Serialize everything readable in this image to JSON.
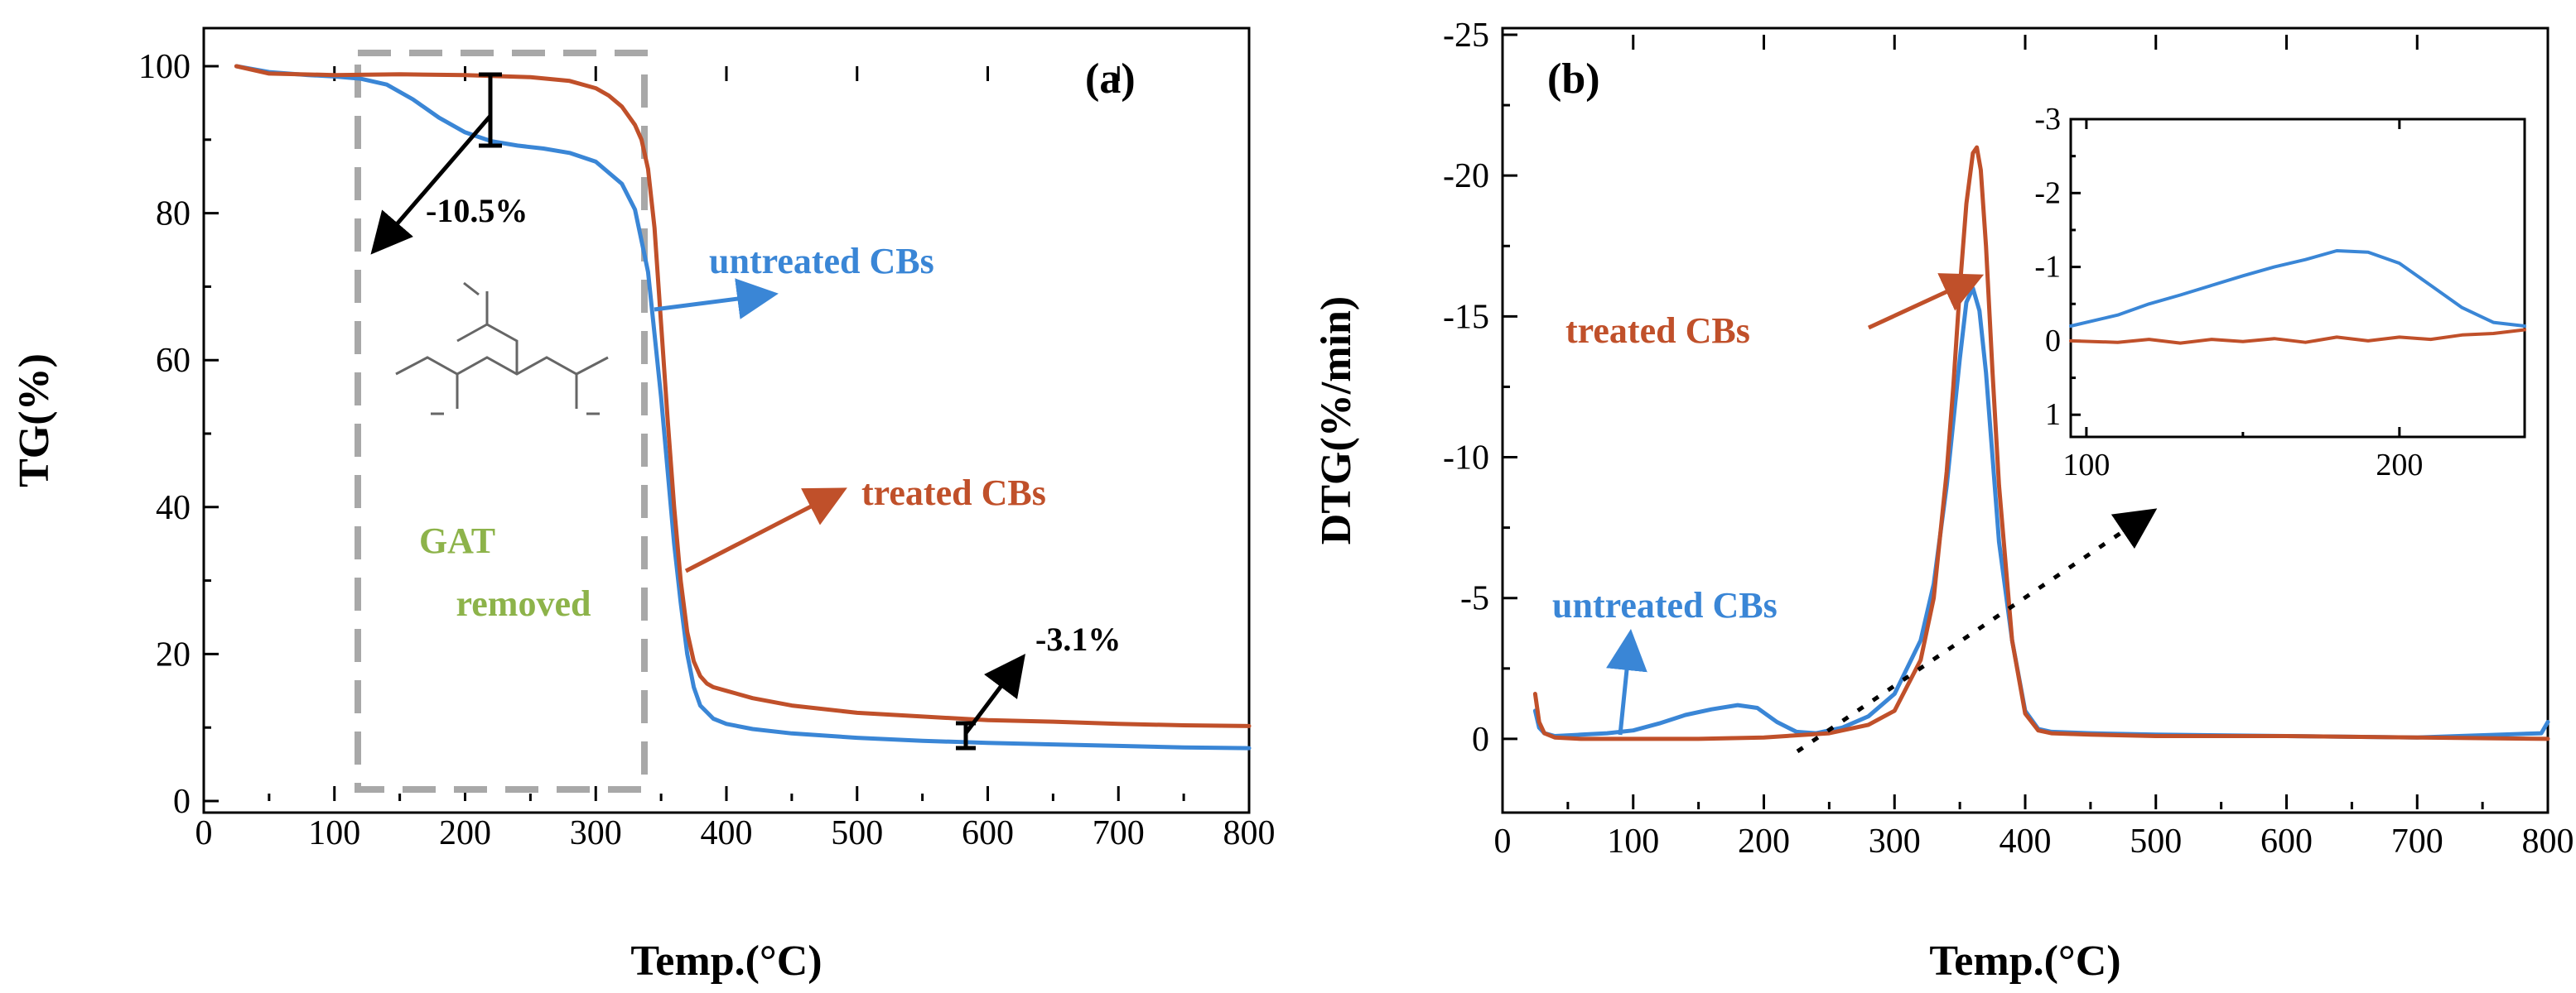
{
  "colors": {
    "untreated": "#3a86d6",
    "treated": "#c0502a",
    "box": "#a8a8a8",
    "gat_text": "#8db34a",
    "arrow": "#000000"
  },
  "chart_data": [
    {
      "type": "line",
      "panel_label": "(a)",
      "xlabel": "Temp.(°C)",
      "ylabel": "TG(%)",
      "xlim": [
        0,
        800
      ],
      "ylim": [
        0,
        100
      ],
      "xticks": [
        0,
        100,
        200,
        300,
        400,
        500,
        600,
        700,
        800
      ],
      "yticks": [
        0,
        20,
        40,
        60,
        80,
        100
      ],
      "series": [
        {
          "name": "untreated CBs",
          "color_key": "untreated",
          "x": [
            25,
            50,
            80,
            100,
            120,
            140,
            160,
            180,
            200,
            220,
            240,
            260,
            280,
            300,
            320,
            330,
            340,
            350,
            355,
            360,
            365,
            370,
            375,
            380,
            390,
            400,
            420,
            450,
            500,
            550,
            600,
            650,
            700,
            750,
            800
          ],
          "y": [
            100,
            99.2,
            98.8,
            98.6,
            98.3,
            97.5,
            95.5,
            93.0,
            91.0,
            89.8,
            89.2,
            88.8,
            88.2,
            87.0,
            84.0,
            80.5,
            72.0,
            55.0,
            45.0,
            35.0,
            27.0,
            20.0,
            15.5,
            13.0,
            11.2,
            10.5,
            9.8,
            9.2,
            8.6,
            8.2,
            7.9,
            7.7,
            7.5,
            7.3,
            7.2
          ]
        },
        {
          "name": "treated CBs",
          "color_key": "treated",
          "x": [
            25,
            50,
            100,
            150,
            200,
            250,
            280,
            300,
            310,
            320,
            330,
            335,
            340,
            345,
            350,
            355,
            360,
            365,
            370,
            375,
            380,
            385,
            390,
            400,
            420,
            450,
            500,
            550,
            600,
            650,
            700,
            750,
            800
          ],
          "y": [
            100,
            99.0,
            98.8,
            98.9,
            98.8,
            98.5,
            98.0,
            97.0,
            96.0,
            94.5,
            92.0,
            90.0,
            86.0,
            78.0,
            65.0,
            52.0,
            40.0,
            30.0,
            23.0,
            19.0,
            17.0,
            16.0,
            15.5,
            15.0,
            14.0,
            13.0,
            12.0,
            11.5,
            11.0,
            10.8,
            10.5,
            10.3,
            10.2
          ]
        }
      ],
      "annotations": {
        "untreated_label": "untreated CBs",
        "treated_label": "treated CBs",
        "loss_1": "-10.5%",
        "loss_2": "-3.1%",
        "gat_line1": "GAT",
        "gat_line2": "removed"
      }
    },
    {
      "type": "line",
      "panel_label": "(b)",
      "xlabel": "Temp.(°C)",
      "ylabel": "DTG(%/min)",
      "xlim": [
        0,
        800
      ],
      "ylim": [
        -25,
        2.5
      ],
      "inverted_y": true,
      "xticks": [
        0,
        100,
        200,
        300,
        400,
        500,
        600,
        700,
        800
      ],
      "yticks": [
        0,
        -5,
        -10,
        -15,
        -20,
        -25
      ],
      "ytick_labels": [
        "0",
        "-5",
        "-10",
        "-15",
        "-20",
        "-25"
      ],
      "series": [
        {
          "name": "untreated CBs",
          "color_key": "untreated",
          "x": [
            25,
            28,
            32,
            40,
            60,
            80,
            100,
            120,
            140,
            160,
            180,
            195,
            210,
            225,
            240,
            260,
            280,
            300,
            320,
            330,
            340,
            350,
            355,
            360,
            365,
            370,
            375,
            380,
            390,
            400,
            410,
            420,
            450,
            500,
            600,
            700,
            795,
            800
          ],
          "y": [
            -1.0,
            -0.4,
            -0.2,
            -0.1,
            -0.15,
            -0.2,
            -0.3,
            -0.55,
            -0.85,
            -1.05,
            -1.2,
            -1.1,
            -0.6,
            -0.25,
            -0.2,
            -0.4,
            -0.8,
            -1.6,
            -3.5,
            -5.5,
            -9.0,
            -13.5,
            -15.5,
            -16.0,
            -15.2,
            -13.0,
            -10.0,
            -7.0,
            -3.5,
            -1.0,
            -0.35,
            -0.25,
            -0.2,
            -0.15,
            -0.1,
            -0.05,
            -0.2,
            -0.6
          ]
        },
        {
          "name": "treated CBs",
          "color_key": "treated",
          "x": [
            25,
            28,
            32,
            40,
            60,
            100,
            150,
            200,
            250,
            280,
            300,
            320,
            330,
            340,
            345,
            350,
            355,
            360,
            363,
            366,
            370,
            375,
            380,
            390,
            400,
            410,
            420,
            450,
            500,
            600,
            700,
            800
          ],
          "y": [
            -1.6,
            -0.6,
            -0.2,
            -0.05,
            0.0,
            0.0,
            0.0,
            -0.05,
            -0.2,
            -0.5,
            -1.0,
            -2.8,
            -5.0,
            -9.5,
            -12.5,
            -16.0,
            -19.0,
            -20.8,
            -21.0,
            -20.2,
            -17.5,
            -13.0,
            -9.0,
            -3.5,
            -0.9,
            -0.3,
            -0.2,
            -0.15,
            -0.1,
            -0.1,
            -0.05,
            0.0
          ]
        }
      ],
      "annotations": {
        "treated_label": "treated CBs",
        "untreated_label": "untreated CBs"
      },
      "inset": {
        "xlim": [
          95,
          240
        ],
        "ylim": [
          -3,
          1.3
        ],
        "xticks": [
          100,
          200
        ],
        "yticks": [
          -3,
          -2,
          -1,
          0,
          1
        ],
        "ytick_labels": [
          "-3",
          "-2",
          "-1",
          "0",
          "1"
        ],
        "series": [
          {
            "color_key": "untreated",
            "x": [
              95,
              110,
              120,
              130,
              140,
              150,
              160,
              170,
              180,
              190,
              200,
              210,
              220,
              230,
              240
            ],
            "y": [
              -0.2,
              -0.35,
              -0.5,
              -0.62,
              -0.75,
              -0.88,
              -1.0,
              -1.1,
              -1.22,
              -1.2,
              -1.05,
              -0.75,
              -0.45,
              -0.25,
              -0.2
            ]
          },
          {
            "color_key": "treated",
            "x": [
              95,
              110,
              120,
              130,
              140,
              150,
              160,
              170,
              180,
              190,
              200,
              210,
              220,
              230,
              240
            ],
            "y": [
              0.0,
              0.02,
              -0.02,
              0.03,
              -0.02,
              0.01,
              -0.03,
              0.02,
              -0.05,
              0.0,
              -0.05,
              -0.02,
              -0.08,
              -0.1,
              -0.15
            ]
          }
        ]
      }
    }
  ]
}
